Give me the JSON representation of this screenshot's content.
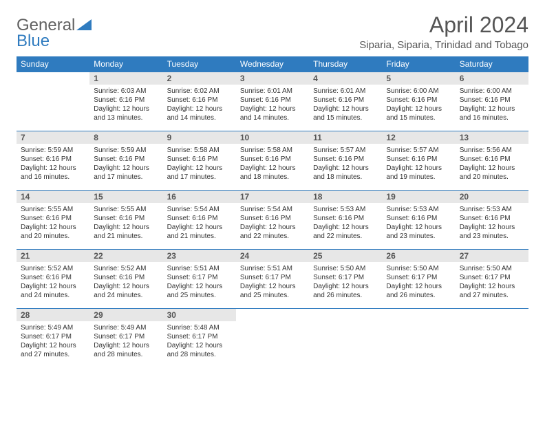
{
  "logo": {
    "general": "General",
    "blue": "Blue"
  },
  "title": "April 2024",
  "location": "Siparia, Siparia, Trinidad and Tobago",
  "weekdays": [
    "Sunday",
    "Monday",
    "Tuesday",
    "Wednesday",
    "Thursday",
    "Friday",
    "Saturday"
  ],
  "colors": {
    "header_bg": "#2f7bbf",
    "header_text": "#ffffff",
    "daynum_bg": "#e7e7e7",
    "border": "#2f7bbf",
    "text": "#333333",
    "title_text": "#555555"
  },
  "typography": {
    "title_fontsize": 32,
    "location_fontsize": 15,
    "weekday_fontsize": 12,
    "daynum_fontsize": 12,
    "body_fontsize": 10
  },
  "start_offset": 1,
  "days": [
    {
      "n": 1,
      "sunrise": "6:03 AM",
      "sunset": "6:16 PM",
      "daylight": "12 hours and 13 minutes."
    },
    {
      "n": 2,
      "sunrise": "6:02 AM",
      "sunset": "6:16 PM",
      "daylight": "12 hours and 14 minutes."
    },
    {
      "n": 3,
      "sunrise": "6:01 AM",
      "sunset": "6:16 PM",
      "daylight": "12 hours and 14 minutes."
    },
    {
      "n": 4,
      "sunrise": "6:01 AM",
      "sunset": "6:16 PM",
      "daylight": "12 hours and 15 minutes."
    },
    {
      "n": 5,
      "sunrise": "6:00 AM",
      "sunset": "6:16 PM",
      "daylight": "12 hours and 15 minutes."
    },
    {
      "n": 6,
      "sunrise": "6:00 AM",
      "sunset": "6:16 PM",
      "daylight": "12 hours and 16 minutes."
    },
    {
      "n": 7,
      "sunrise": "5:59 AM",
      "sunset": "6:16 PM",
      "daylight": "12 hours and 16 minutes."
    },
    {
      "n": 8,
      "sunrise": "5:59 AM",
      "sunset": "6:16 PM",
      "daylight": "12 hours and 17 minutes."
    },
    {
      "n": 9,
      "sunrise": "5:58 AM",
      "sunset": "6:16 PM",
      "daylight": "12 hours and 17 minutes."
    },
    {
      "n": 10,
      "sunrise": "5:58 AM",
      "sunset": "6:16 PM",
      "daylight": "12 hours and 18 minutes."
    },
    {
      "n": 11,
      "sunrise": "5:57 AM",
      "sunset": "6:16 PM",
      "daylight": "12 hours and 18 minutes."
    },
    {
      "n": 12,
      "sunrise": "5:57 AM",
      "sunset": "6:16 PM",
      "daylight": "12 hours and 19 minutes."
    },
    {
      "n": 13,
      "sunrise": "5:56 AM",
      "sunset": "6:16 PM",
      "daylight": "12 hours and 20 minutes."
    },
    {
      "n": 14,
      "sunrise": "5:55 AM",
      "sunset": "6:16 PM",
      "daylight": "12 hours and 20 minutes."
    },
    {
      "n": 15,
      "sunrise": "5:55 AM",
      "sunset": "6:16 PM",
      "daylight": "12 hours and 21 minutes."
    },
    {
      "n": 16,
      "sunrise": "5:54 AM",
      "sunset": "6:16 PM",
      "daylight": "12 hours and 21 minutes."
    },
    {
      "n": 17,
      "sunrise": "5:54 AM",
      "sunset": "6:16 PM",
      "daylight": "12 hours and 22 minutes."
    },
    {
      "n": 18,
      "sunrise": "5:53 AM",
      "sunset": "6:16 PM",
      "daylight": "12 hours and 22 minutes."
    },
    {
      "n": 19,
      "sunrise": "5:53 AM",
      "sunset": "6:16 PM",
      "daylight": "12 hours and 23 minutes."
    },
    {
      "n": 20,
      "sunrise": "5:53 AM",
      "sunset": "6:16 PM",
      "daylight": "12 hours and 23 minutes."
    },
    {
      "n": 21,
      "sunrise": "5:52 AM",
      "sunset": "6:16 PM",
      "daylight": "12 hours and 24 minutes."
    },
    {
      "n": 22,
      "sunrise": "5:52 AM",
      "sunset": "6:16 PM",
      "daylight": "12 hours and 24 minutes."
    },
    {
      "n": 23,
      "sunrise": "5:51 AM",
      "sunset": "6:17 PM",
      "daylight": "12 hours and 25 minutes."
    },
    {
      "n": 24,
      "sunrise": "5:51 AM",
      "sunset": "6:17 PM",
      "daylight": "12 hours and 25 minutes."
    },
    {
      "n": 25,
      "sunrise": "5:50 AM",
      "sunset": "6:17 PM",
      "daylight": "12 hours and 26 minutes."
    },
    {
      "n": 26,
      "sunrise": "5:50 AM",
      "sunset": "6:17 PM",
      "daylight": "12 hours and 26 minutes."
    },
    {
      "n": 27,
      "sunrise": "5:50 AM",
      "sunset": "6:17 PM",
      "daylight": "12 hours and 27 minutes."
    },
    {
      "n": 28,
      "sunrise": "5:49 AM",
      "sunset": "6:17 PM",
      "daylight": "12 hours and 27 minutes."
    },
    {
      "n": 29,
      "sunrise": "5:49 AM",
      "sunset": "6:17 PM",
      "daylight": "12 hours and 28 minutes."
    },
    {
      "n": 30,
      "sunrise": "5:48 AM",
      "sunset": "6:17 PM",
      "daylight": "12 hours and 28 minutes."
    }
  ],
  "labels": {
    "sunrise": "Sunrise:",
    "sunset": "Sunset:",
    "daylight": "Daylight:"
  }
}
